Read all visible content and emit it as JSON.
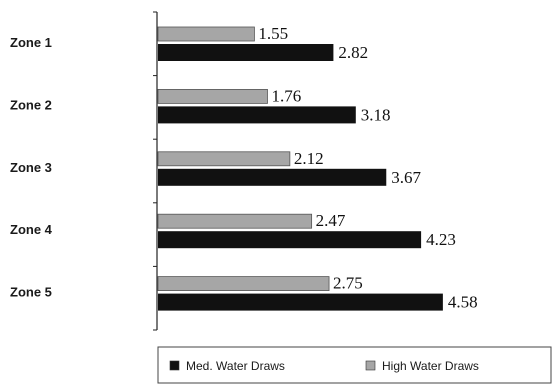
{
  "chart_data": {
    "type": "bar",
    "orientation": "horizontal",
    "categories": [
      "Zone 1",
      "Zone 2",
      "Zone 3",
      "Zone 4",
      "Zone 5"
    ],
    "series": [
      {
        "name": "High Water Draws",
        "values": [
          1.55,
          1.76,
          2.12,
          2.47,
          2.75
        ],
        "color": "#a6a6a6"
      },
      {
        "name": "Med. Water Draws",
        "values": [
          2.82,
          3.18,
          3.67,
          4.23,
          4.58
        ],
        "color": "#111111"
      }
    ],
    "value_labels": {
      "High Water Draws": [
        "1.55",
        "1.76",
        "2.12",
        "2.47",
        "2.75"
      ],
      "Med. Water Draws": [
        "2.82",
        "3.18",
        "3.67",
        "4.23",
        "4.58"
      ]
    },
    "legend": {
      "position": "bottom",
      "items": [
        {
          "label": "Med. Water Draws",
          "color": "#111111"
        },
        {
          "label": "High Water Draws",
          "color": "#a6a6a6"
        }
      ]
    },
    "xlim": [
      0,
      5
    ],
    "grid": false,
    "title": "",
    "xlabel": "",
    "ylabel": ""
  }
}
